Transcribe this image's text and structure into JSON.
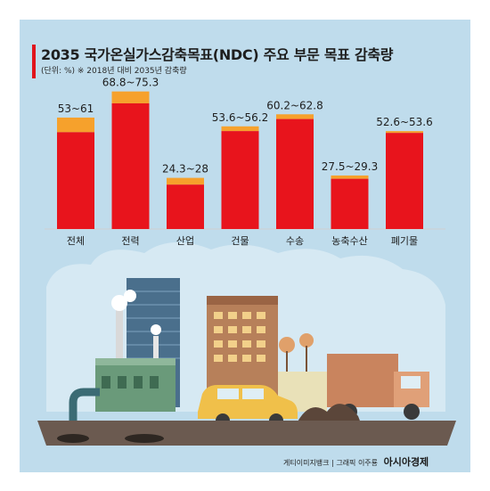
{
  "title": "2035 국가온실가스감축목표(NDC) 주요 부문 목표 감축량",
  "subtitle": "(단위: %) ※ 2018년 대비 2035년 감축량",
  "chart_data": {
    "type": "bar",
    "categories": [
      "전체",
      "전력",
      "산업",
      "건물",
      "수송",
      "농축수산",
      "폐기물"
    ],
    "series": [
      {
        "values": [
          53,
          68.8,
          24.3,
          53.6,
          60.2,
          27.5,
          52.6
        ]
      },
      {
        "values": [
          61,
          75.3,
          28,
          56.2,
          62.8,
          29.3,
          53.6
        ]
      }
    ],
    "value_labels": [
      "53~61",
      "68.8~75.3",
      "24.3~28",
      "53.6~56.2",
      "60.2~62.8",
      "27.5~29.3",
      "52.6~53.6"
    ],
    "ylim": [
      0,
      80
    ],
    "grid": false,
    "colors": {
      "low": "#e8141c",
      "high": "#f6a12c"
    }
  },
  "credits": {
    "source": "게티이미지뱅크",
    "separator": "|",
    "graphic": "그래픽 이주룡",
    "brand": "아시아경제"
  },
  "palette": {
    "title_bar": "#e0141c",
    "panel": "#bfdcec",
    "ground": "#6b5a50"
  }
}
